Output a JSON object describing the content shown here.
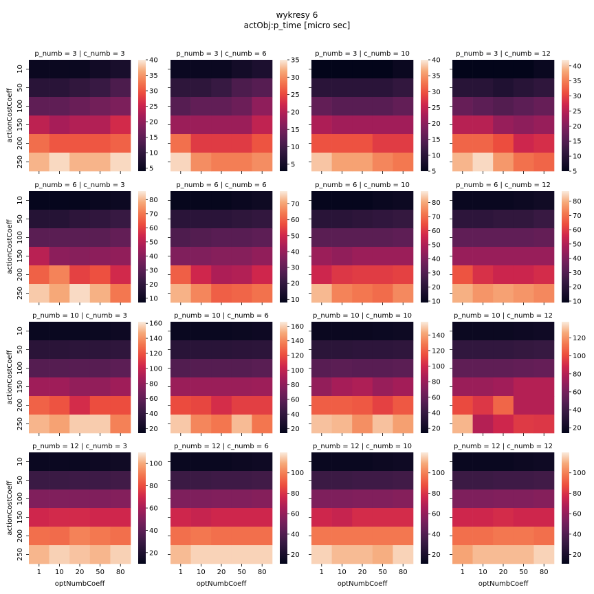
{
  "figure": {
    "title": "wykresy 6",
    "subtitle": "actObj:p_time [micro sec]",
    "xlabel": "optNumbCoeff",
    "ylabel": "actionCostCoeff"
  },
  "chart_data": {
    "type": "heatmap",
    "colormap": "rocket",
    "x_tick_labels": [
      "1",
      "10",
      "20",
      "50",
      "80"
    ],
    "y_tick_labels": [
      "10",
      "50",
      "100",
      "150",
      "200",
      "250"
    ],
    "panels": [
      {
        "title": "p_numb = 3 | c_numb = 3",
        "vmin": 4,
        "vmax": 40,
        "cbar_ticks": [
          5,
          10,
          15,
          20,
          25,
          30,
          35,
          40
        ],
        "values": [
          [
            5,
            5,
            5,
            6,
            7
          ],
          [
            9,
            9,
            10,
            11,
            13
          ],
          [
            15,
            15,
            16,
            17,
            18
          ],
          [
            24,
            22,
            23,
            23,
            26
          ],
          [
            32,
            30,
            30,
            30,
            31
          ],
          [
            37,
            39,
            37,
            37,
            39
          ]
        ]
      },
      {
        "title": "p_numb = 3 | c_numb = 6",
        "vmin": 3,
        "vmax": 35,
        "cbar_ticks": [
          5,
          10,
          15,
          20,
          25,
          30,
          35
        ],
        "values": [
          [
            4,
            4,
            4,
            5,
            6
          ],
          [
            8,
            8,
            9,
            11,
            12
          ],
          [
            12,
            13,
            13,
            14,
            17
          ],
          [
            18,
            18,
            18,
            18,
            21
          ],
          [
            28,
            24,
            24,
            24,
            26
          ],
          [
            34,
            30,
            29,
            29,
            30
          ]
        ]
      },
      {
        "title": "p_numb = 3 | c_numb = 10",
        "vmin": 5,
        "vmax": 40,
        "cbar_ticks": [
          5,
          10,
          15,
          20,
          25,
          30,
          35,
          40
        ],
        "values": [
          [
            5,
            5,
            5,
            5,
            6
          ],
          [
            10,
            10,
            10,
            10,
            11
          ],
          [
            16,
            15,
            15,
            15,
            16
          ],
          [
            23,
            22,
            22,
            22,
            22
          ],
          [
            30,
            30,
            30,
            28,
            28
          ],
          [
            38,
            36,
            36,
            34,
            33
          ]
        ]
      },
      {
        "title": "p_numb = 3 | c_numb = 12",
        "vmin": 5,
        "vmax": 42,
        "cbar_ticks": [
          5,
          10,
          15,
          20,
          25,
          30,
          35,
          40
        ],
        "values": [
          [
            5,
            5,
            5,
            5,
            6
          ],
          [
            10,
            10,
            9,
            10,
            11
          ],
          [
            17,
            16,
            15,
            16,
            17
          ],
          [
            25,
            25,
            22,
            21,
            22
          ],
          [
            33,
            33,
            31,
            27,
            28
          ],
          [
            39,
            41,
            37,
            34,
            33
          ]
        ]
      },
      {
        "title": "p_numb = 6 | c_numb = 3",
        "vmin": 7,
        "vmax": 86,
        "cbar_ticks": [
          10,
          20,
          30,
          40,
          50,
          60,
          70,
          80
        ],
        "values": [
          [
            8,
            8,
            8,
            9,
            10
          ],
          [
            17,
            17,
            19,
            20,
            22
          ],
          [
            30,
            30,
            30,
            30,
            32
          ],
          [
            50,
            41,
            40,
            41,
            42
          ],
          [
            66,
            72,
            60,
            63,
            55
          ],
          [
            82,
            78,
            84,
            79,
            70
          ]
        ]
      },
      {
        "title": "p_numb = 6 | c_numb = 6",
        "vmin": 8,
        "vmax": 78,
        "cbar_ticks": [
          10,
          20,
          30,
          40,
          50,
          60,
          70
        ],
        "values": [
          [
            9,
            9,
            9,
            10,
            11
          ],
          [
            18,
            18,
            18,
            19,
            20
          ],
          [
            26,
            27,
            28,
            28,
            29
          ],
          [
            36,
            36,
            37,
            37,
            39
          ],
          [
            60,
            50,
            44,
            45,
            50
          ],
          [
            72,
            66,
            60,
            61,
            63
          ]
        ]
      },
      {
        "title": "p_numb = 6 | c_numb = 10",
        "vmin": 9,
        "vmax": 88,
        "cbar_ticks": [
          10,
          20,
          30,
          40,
          50,
          60,
          70,
          80
        ],
        "values": [
          [
            10,
            10,
            10,
            11,
            12
          ],
          [
            20,
            20,
            21,
            22,
            23
          ],
          [
            32,
            32,
            32,
            32,
            33
          ],
          [
            46,
            44,
            46,
            46,
            46
          ],
          [
            56,
            60,
            61,
            61,
            62
          ],
          [
            82,
            74,
            72,
            70,
            75
          ]
        ]
      },
      {
        "title": "p_numb = 6 | c_numb = 12",
        "vmin": 9,
        "vmax": 87,
        "cbar_ticks": [
          10,
          20,
          30,
          40,
          50,
          60,
          70,
          80
        ],
        "values": [
          [
            11,
            11,
            11,
            12,
            13
          ],
          [
            21,
            21,
            22,
            22,
            24
          ],
          [
            33,
            33,
            33,
            33,
            34
          ],
          [
            45,
            45,
            45,
            45,
            45
          ],
          [
            65,
            58,
            55,
            55,
            57
          ],
          [
            80,
            76,
            78,
            76,
            74
          ]
        ]
      },
      {
        "title": "p_numb = 10 | c_numb = 3",
        "vmin": 14,
        "vmax": 162,
        "cbar_ticks": [
          20,
          40,
          60,
          80,
          100,
          120,
          140,
          160
        ],
        "values": [
          [
            18,
            18,
            18,
            19,
            20
          ],
          [
            35,
            35,
            36,
            36,
            38
          ],
          [
            55,
            55,
            56,
            56,
            58
          ],
          [
            85,
            85,
            80,
            80,
            85
          ],
          [
            125,
            120,
            105,
            118,
            118
          ],
          [
            150,
            145,
            155,
            155,
            135
          ]
        ]
      },
      {
        "title": "p_numb = 10 | c_numb = 6",
        "vmin": 14,
        "vmax": 166,
        "cbar_ticks": [
          20,
          40,
          60,
          80,
          100,
          120,
          140,
          160
        ],
        "values": [
          [
            18,
            18,
            18,
            19,
            20
          ],
          [
            35,
            35,
            35,
            36,
            37
          ],
          [
            55,
            56,
            56,
            56,
            58
          ],
          [
            85,
            85,
            85,
            85,
            86
          ],
          [
            120,
            118,
            108,
            115,
            115
          ],
          [
            158,
            140,
            135,
            155,
            135
          ]
        ]
      },
      {
        "title": "p_numb = 10 | c_numb = 10",
        "vmin": 14,
        "vmax": 157,
        "cbar_ticks": [
          20,
          40,
          60,
          80,
          100,
          120,
          140
        ],
        "values": [
          [
            18,
            18,
            18,
            19,
            20
          ],
          [
            35,
            35,
            36,
            36,
            37
          ],
          [
            55,
            56,
            55,
            55,
            56
          ],
          [
            78,
            85,
            88,
            80,
            84
          ],
          [
            120,
            120,
            118,
            110,
            118
          ],
          [
            148,
            146,
            135,
            148,
            140
          ]
        ]
      },
      {
        "title": "p_numb = 10 | c_numb = 12",
        "vmin": 14,
        "vmax": 138,
        "cbar_ticks": [
          20,
          40,
          60,
          80,
          100,
          120
        ],
        "values": [
          [
            18,
            18,
            18,
            19,
            20
          ],
          [
            35,
            35,
            35,
            36,
            37
          ],
          [
            52,
            52,
            52,
            53,
            54
          ],
          [
            72,
            72,
            74,
            80,
            80
          ],
          [
            100,
            94,
            108,
            80,
            80
          ],
          [
            128,
            80,
            88,
            95,
            94
          ]
        ]
      },
      {
        "title": "p_numb = 12 | c_numb = 3",
        "vmin": 10,
        "vmax": 110,
        "cbar_ticks": [
          20,
          40,
          60,
          80,
          100
        ],
        "values": [
          [
            13,
            13,
            13,
            14,
            15
          ],
          [
            30,
            30,
            31,
            31,
            32
          ],
          [
            50,
            50,
            50,
            50,
            51
          ],
          [
            70,
            71,
            71,
            70,
            70
          ],
          [
            88,
            87,
            92,
            90,
            88
          ],
          [
            102,
            106,
            104,
            102,
            106
          ]
        ]
      },
      {
        "title": "p_numb = 12 | c_numb = 6",
        "vmin": 11,
        "vmax": 120,
        "cbar_ticks": [
          20,
          40,
          60,
          80,
          100
        ],
        "values": [
          [
            14,
            14,
            14,
            15,
            16
          ],
          [
            33,
            33,
            34,
            34,
            35
          ],
          [
            54,
            54,
            55,
            55,
            56
          ],
          [
            76,
            74,
            76,
            76,
            76
          ],
          [
            96,
            98,
            96,
            96,
            96
          ],
          [
            112,
            116,
            116,
            116,
            116
          ]
        ]
      },
      {
        "title": "p_numb = 12 | c_numb = 10",
        "vmin": 11,
        "vmax": 120,
        "cbar_ticks": [
          20,
          40,
          60,
          80,
          100
        ],
        "values": [
          [
            14,
            14,
            14,
            15,
            16
          ],
          [
            33,
            33,
            34,
            34,
            35
          ],
          [
            54,
            54,
            55,
            55,
            56
          ],
          [
            76,
            74,
            78,
            78,
            78
          ],
          [
            98,
            98,
            98,
            98,
            98
          ],
          [
            116,
            112,
            112,
            110,
            116
          ]
        ]
      },
      {
        "title": "p_numb = 12 | c_numb = 12",
        "vmin": 11,
        "vmax": 120,
        "cbar_ticks": [
          20,
          40,
          60,
          80,
          100
        ],
        "values": [
          [
            14,
            14,
            14,
            15,
            16
          ],
          [
            33,
            33,
            34,
            34,
            35
          ],
          [
            54,
            54,
            55,
            55,
            56
          ],
          [
            76,
            76,
            78,
            76,
            76
          ],
          [
            96,
            96,
            98,
            98,
            96
          ],
          [
            108,
            112,
            112,
            112,
            116
          ]
        ]
      }
    ]
  }
}
